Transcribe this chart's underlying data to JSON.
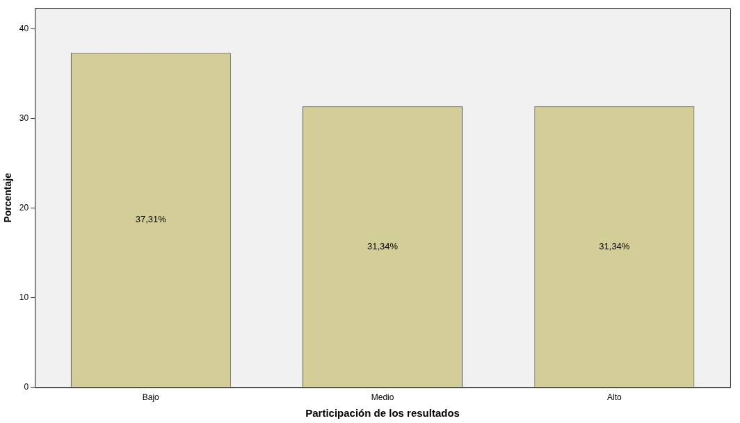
{
  "chart_data": {
    "type": "bar",
    "xlabel": "Participación de los resultados",
    "ylabel": "Porcentaje",
    "categories": [
      "Bajo",
      "Medio",
      "Alto"
    ],
    "values": [
      37.31,
      31.34,
      31.34
    ],
    "value_labels": [
      "37,31%",
      "31,34%",
      "31,34%"
    ],
    "color": "#d3ce97",
    "ylim": [
      0,
      42.3
    ],
    "yticks": [
      0,
      10,
      20,
      30,
      40
    ],
    "grid": false
  }
}
